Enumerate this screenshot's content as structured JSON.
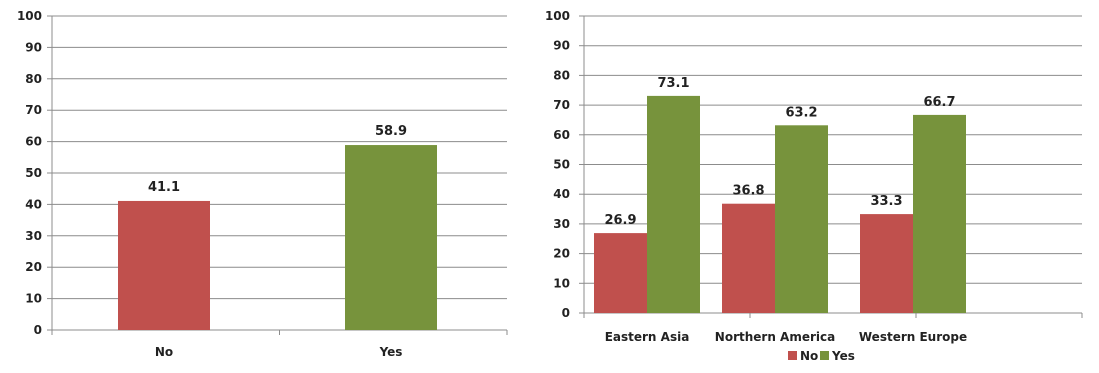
{
  "colors": {
    "no": "#c0504d",
    "yes": "#77933c"
  },
  "chart_data": [
    {
      "type": "bar",
      "categories": [
        "No",
        "Yes"
      ],
      "values": [
        41.1,
        58.9
      ],
      "value_labels": [
        "41.1",
        "58.9"
      ],
      "bar_colors": [
        "#c0504d",
        "#77933c"
      ],
      "title": "",
      "xlabel": "",
      "ylabel": "",
      "ylim": [
        0,
        100
      ],
      "yticks": [
        "0",
        "10",
        "20",
        "30",
        "40",
        "50",
        "60",
        "70",
        "80",
        "90",
        "100"
      ],
      "grid": true,
      "legend": "none"
    },
    {
      "type": "bar",
      "categories": [
        "Eastern Asia",
        "Northern America",
        "Western Europe"
      ],
      "series": [
        {
          "name": "No",
          "color": "#c0504d",
          "values": [
            26.9,
            36.8,
            33.3
          ],
          "value_labels": [
            "26.9",
            "36.8",
            "33.3"
          ]
        },
        {
          "name": "Yes",
          "color": "#77933c",
          "values": [
            73.1,
            63.2,
            66.7
          ],
          "value_labels": [
            "73.1",
            "63.2",
            "66.7"
          ]
        }
      ],
      "title": "",
      "xlabel": "",
      "ylabel": "",
      "ylim": [
        0,
        100
      ],
      "yticks": [
        "0",
        "10",
        "20",
        "30",
        "40",
        "50",
        "60",
        "70",
        "80",
        "90",
        "100"
      ],
      "grid": true,
      "legend": "bottom"
    }
  ]
}
